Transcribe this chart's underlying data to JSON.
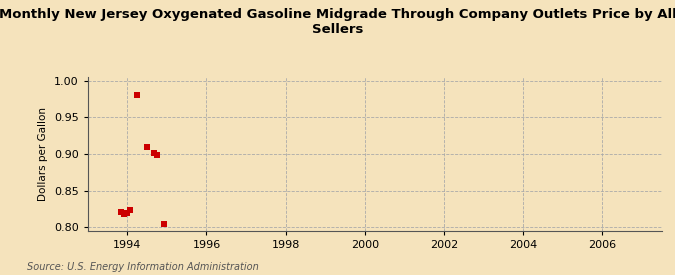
{
  "title": "Monthly New Jersey Oxygenated Gasoline Midgrade Through Company Outlets Price by All\nSellers",
  "ylabel": "Dollars per Gallon",
  "source": "Source: U.S. Energy Information Administration",
  "background_color": "#f5e3bc",
  "scatter_color": "#cc0000",
  "xlim": [
    1993.0,
    2007.5
  ],
  "ylim": [
    0.795,
    1.005
  ],
  "xticks": [
    1994,
    1996,
    1998,
    2000,
    2002,
    2004,
    2006
  ],
  "yticks": [
    0.8,
    0.85,
    0.9,
    0.95,
    1.0
  ],
  "data_x": [
    1993.83,
    1993.92,
    1994.0,
    1994.08,
    1994.25,
    1994.5,
    1994.67,
    1994.75,
    1994.92
  ],
  "data_y": [
    0.821,
    0.818,
    0.82,
    0.823,
    0.981,
    0.91,
    0.901,
    0.899,
    0.805
  ],
  "marker": "s",
  "marker_size": 4,
  "grid_color": "#aaaaaa",
  "grid_linestyle": "--",
  "title_fontsize": 9.5,
  "label_fontsize": 7.5,
  "tick_fontsize": 8,
  "source_fontsize": 7
}
